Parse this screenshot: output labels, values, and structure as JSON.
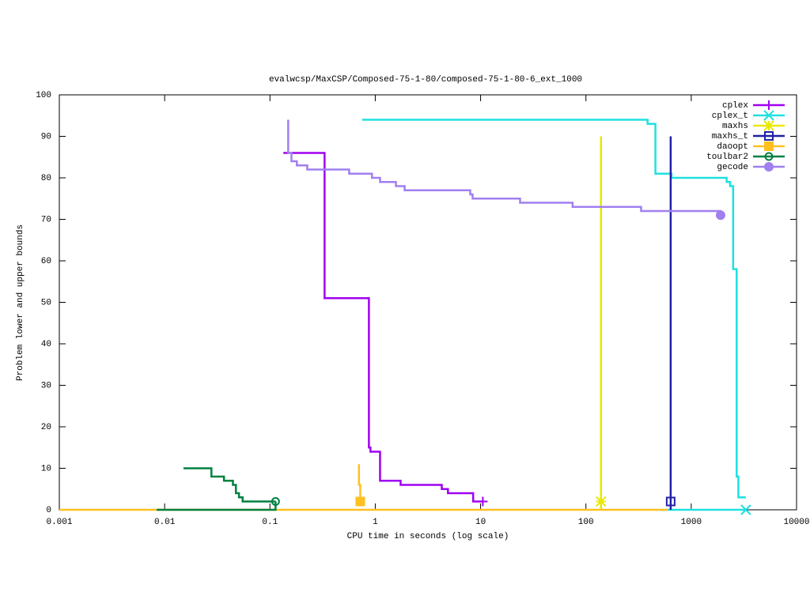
{
  "chart_data": {
    "type": "line",
    "title": "evalwcsp/MaxCSP/Composed-75-1-80/composed-75-1-80-6_ext_1000",
    "x_label": "CPU time in seconds (log scale)",
    "y_label": "Problem lower and upper bounds",
    "xscale": "log",
    "xlim": [
      0.001,
      10000
    ],
    "ylim": [
      0,
      100
    ],
    "xticks": [
      0.001,
      0.01,
      0.1,
      1,
      10,
      100,
      1000,
      10000
    ],
    "yticks": [
      0,
      10,
      20,
      30,
      40,
      50,
      60,
      70,
      80,
      90,
      100
    ],
    "legend": "top-right",
    "series": [
      {
        "name": "cplex",
        "color": "#a000f0",
        "x": [
          0.134,
          0.33,
          0.33,
          0.87,
          0.87,
          0.9,
          0.9,
          1.11,
          1.11,
          1.74,
          1.74,
          4.28,
          4.28,
          4.9,
          4.9,
          8.5,
          8.5,
          10.5
        ],
        "values": [
          86,
          86,
          51,
          51,
          15,
          15,
          14,
          14,
          7,
          7,
          6,
          6,
          5,
          5,
          4,
          4,
          2,
          2
        ]
      },
      {
        "name": "cplex_t",
        "color": "#20e0e0",
        "x": [
          0.75,
          385,
          385,
          457,
          457,
          650,
          650,
          2170,
          2170,
          2340,
          2340,
          2500,
          2500,
          2700,
          2700,
          2800,
          2800,
          3300,
          null,
          525,
          3300
        ],
        "values": [
          94,
          94,
          93,
          93,
          81,
          81,
          80,
          80,
          79,
          79,
          78,
          78,
          58,
          58,
          8,
          8,
          3,
          3,
          null,
          0,
          0
        ]
      },
      {
        "name": "maxhs",
        "color": "#e8e800",
        "x": [
          139,
          139,
          139
        ],
        "values": [
          90,
          0,
          2
        ]
      },
      {
        "name": "maxhs_t",
        "color": "#2020a8",
        "x": [
          638,
          638,
          638
        ],
        "values": [
          90,
          0,
          2
        ]
      },
      {
        "name": "daoopt",
        "color": "#ffc020",
        "x": [
          0.001,
          600,
          null,
          0.7,
          0.7,
          0.72,
          0.72
        ],
        "values": [
          0,
          0,
          null,
          11,
          6,
          6,
          2
        ]
      },
      {
        "name": "toulbar2",
        "color": "#008040",
        "x": [
          0.0151,
          0.0278,
          0.0278,
          0.0366,
          0.0366,
          0.0445,
          0.0445,
          0.0475,
          0.0475,
          0.0508,
          0.0508,
          0.055,
          0.055,
          0.113,
          null,
          0.0084,
          0.113,
          0.113
        ],
        "values": [
          10,
          10,
          8,
          8,
          7,
          7,
          6,
          6,
          4,
          4,
          3,
          3,
          2,
          2,
          null,
          0,
          0,
          2
        ]
      },
      {
        "name": "gecode",
        "color": "#a080f0",
        "x": [
          0.149,
          0.149,
          0.154,
          0.16,
          0.16,
          0.18,
          0.18,
          0.226,
          0.226,
          0.565,
          0.565,
          0.93,
          0.93,
          1.11,
          1.11,
          1.57,
          1.57,
          1.9,
          1.9,
          7.98,
          7.98,
          8.4,
          8.4,
          23.7,
          23.7,
          74.7,
          74.7,
          334,
          334,
          1900,
          1900
        ],
        "values": [
          94,
          86,
          86,
          86,
          84,
          84,
          83,
          83,
          82,
          82,
          81,
          81,
          80,
          80,
          79,
          79,
          78,
          78,
          77,
          77,
          76,
          76,
          75,
          75,
          74,
          74,
          73,
          73,
          72,
          72,
          71
        ]
      }
    ]
  }
}
